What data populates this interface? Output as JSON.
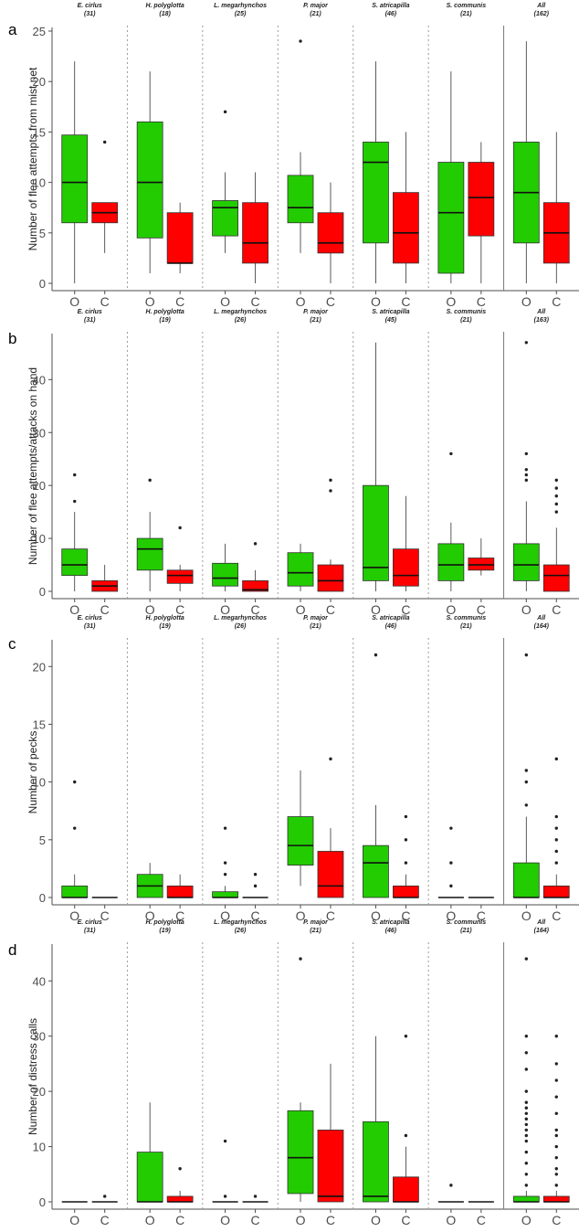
{
  "colors": {
    "O": "#22cc00",
    "C": "#ff0000",
    "axis": "#4d4d4d",
    "separator": "#9a9a9a"
  },
  "group_labels": [
    "O",
    "C"
  ],
  "chart_data": [
    {
      "type": "box",
      "panel": "a",
      "ylabel": "Number of flee attempts from mist net",
      "ylim": [
        0,
        25
      ],
      "yticks": [
        0,
        5,
        10,
        15,
        20,
        25
      ],
      "species": [
        {
          "name": "E. cirlus",
          "n": "(31)",
          "O": {
            "min": 0,
            "q1": 6,
            "median": 10,
            "q3": 14.7,
            "max": 22,
            "outliers": []
          },
          "C": {
            "min": 3,
            "q1": 6,
            "median": 7,
            "q3": 8,
            "max": 8,
            "outliers": [
              14
            ]
          }
        },
        {
          "name": "H. polyglotta",
          "n": "(18)",
          "O": {
            "min": 1,
            "q1": 4.5,
            "median": 10,
            "q3": 16,
            "max": 21,
            "outliers": []
          },
          "C": {
            "min": 1,
            "q1": 2,
            "median": 2,
            "q3": 7,
            "max": 8,
            "outliers": []
          }
        },
        {
          "name": "L. megarhynchos",
          "n": "(25)",
          "O": {
            "min": 3,
            "q1": 4.7,
            "median": 7.5,
            "q3": 8.2,
            "max": 11,
            "outliers": [
              17
            ]
          },
          "C": {
            "min": 0,
            "q1": 2,
            "median": 4,
            "q3": 8,
            "max": 11,
            "outliers": []
          }
        },
        {
          "name": "P. major",
          "n": "(21)",
          "O": {
            "min": 3,
            "q1": 6,
            "median": 7.5,
            "q3": 10.7,
            "max": 13,
            "outliers": [
              24
            ]
          },
          "C": {
            "min": 0,
            "q1": 3,
            "median": 4,
            "q3": 7,
            "max": 10,
            "outliers": []
          }
        },
        {
          "name": "S. atricapilla",
          "n": "(46)",
          "O": {
            "min": 0,
            "q1": 4,
            "median": 12,
            "q3": 14,
            "max": 22,
            "outliers": []
          },
          "C": {
            "min": 0,
            "q1": 2,
            "median": 5,
            "q3": 9,
            "max": 15,
            "outliers": []
          }
        },
        {
          "name": "S. communis",
          "n": "(21)",
          "O": {
            "min": 0,
            "q1": 1,
            "median": 7,
            "q3": 12,
            "max": 21,
            "outliers": []
          },
          "C": {
            "min": 0,
            "q1": 4.7,
            "median": 8.5,
            "q3": 12,
            "max": 14,
            "outliers": []
          }
        },
        {
          "name": "All",
          "n": "(162)",
          "O": {
            "min": 0,
            "q1": 4,
            "median": 9,
            "q3": 14,
            "max": 24,
            "outliers": []
          },
          "C": {
            "min": 0,
            "q1": 2,
            "median": 5,
            "q3": 8,
            "max": 15,
            "outliers": []
          }
        }
      ]
    },
    {
      "type": "box",
      "panel": "b",
      "ylabel": "Number of flee attempts/attacks on hand",
      "ylim": [
        0,
        48
      ],
      "yticks": [
        0,
        10,
        20,
        30,
        40
      ],
      "species": [
        {
          "name": "E. cirlus",
          "n": "(31)",
          "O": {
            "min": 0,
            "q1": 3,
            "median": 5,
            "q3": 8,
            "max": 15,
            "outliers": [
              17,
              22
            ]
          },
          "C": {
            "min": 0,
            "q1": 0,
            "median": 1,
            "q3": 2,
            "max": 5,
            "outliers": []
          }
        },
        {
          "name": "H. polyglotta",
          "n": "(19)",
          "O": {
            "min": 0,
            "q1": 4,
            "median": 8,
            "q3": 10,
            "max": 15,
            "outliers": [
              21
            ]
          },
          "C": {
            "min": 0,
            "q1": 1.5,
            "median": 3,
            "q3": 4,
            "max": 5,
            "outliers": [
              12
            ]
          }
        },
        {
          "name": "L. megarhynchos",
          "n": "(26)",
          "O": {
            "min": 0,
            "q1": 1,
            "median": 2.5,
            "q3": 5.3,
            "max": 9,
            "outliers": []
          },
          "C": {
            "min": 0,
            "q1": 0,
            "median": 0.3,
            "q3": 2,
            "max": 4,
            "outliers": [
              9
            ]
          }
        },
        {
          "name": "P. major",
          "n": "(21)",
          "O": {
            "min": 0,
            "q1": 1,
            "median": 3.5,
            "q3": 7.3,
            "max": 9,
            "outliers": []
          },
          "C": {
            "min": 0,
            "q1": 0,
            "median": 2,
            "q3": 5,
            "max": 6,
            "outliers": [
              19,
              21
            ]
          }
        },
        {
          "name": "S. atricapilla",
          "n": "(45)",
          "O": {
            "min": 0,
            "q1": 2,
            "median": 4.5,
            "q3": 20,
            "max": 47,
            "outliers": []
          },
          "C": {
            "min": 0,
            "q1": 1,
            "median": 3,
            "q3": 8,
            "max": 18,
            "outliers": []
          }
        },
        {
          "name": "S. communis",
          "n": "(21)",
          "O": {
            "min": 0,
            "q1": 2,
            "median": 5,
            "q3": 9,
            "max": 13,
            "outliers": [
              26
            ]
          },
          "C": {
            "min": 3,
            "q1": 4,
            "median": 5,
            "q3": 6.3,
            "max": 10,
            "outliers": []
          }
        },
        {
          "name": "All",
          "n": "(163)",
          "O": {
            "min": 0,
            "q1": 2,
            "median": 5,
            "q3": 9,
            "max": 17,
            "outliers": [
              21,
              22,
              23,
              26,
              47
            ]
          },
          "C": {
            "min": 0,
            "q1": 0,
            "median": 3,
            "q3": 5,
            "max": 12,
            "outliers": [
              15,
              16.5,
              18,
              19.5,
              21
            ]
          }
        }
      ]
    },
    {
      "type": "box",
      "panel": "c",
      "ylabel": "Number of pecks",
      "ylim": [
        0,
        22
      ],
      "yticks": [
        0,
        5,
        10,
        15,
        20
      ],
      "species": [
        {
          "name": "E. cirlus",
          "n": "(31)",
          "O": {
            "min": 0,
            "q1": 0,
            "median": 0,
            "q3": 1,
            "max": 2,
            "outliers": [
              6,
              10
            ]
          },
          "C": {
            "min": 0,
            "q1": 0,
            "median": 0,
            "q3": 0,
            "max": 0,
            "outliers": []
          }
        },
        {
          "name": "H. polyglotta",
          "n": "(19)",
          "O": {
            "min": 0,
            "q1": 0,
            "median": 1,
            "q3": 2,
            "max": 3,
            "outliers": []
          },
          "C": {
            "min": 0,
            "q1": 0,
            "median": 0,
            "q3": 1,
            "max": 2,
            "outliers": []
          }
        },
        {
          "name": "L. megarhynchos",
          "n": "(26)",
          "O": {
            "min": 0,
            "q1": 0,
            "median": 0,
            "q3": 0.5,
            "max": 1,
            "outliers": [
              2,
              3,
              6
            ]
          },
          "C": {
            "min": 0,
            "q1": 0,
            "median": 0,
            "q3": 0,
            "max": 0,
            "outliers": [
              1,
              2
            ]
          }
        },
        {
          "name": "P. major",
          "n": "(21)",
          "O": {
            "min": 1,
            "q1": 2.8,
            "median": 4.5,
            "q3": 7,
            "max": 11,
            "outliers": []
          },
          "C": {
            "min": 0,
            "q1": 0,
            "median": 1,
            "q3": 4,
            "max": 6,
            "outliers": [
              12
            ]
          }
        },
        {
          "name": "S. atricapilla",
          "n": "(46)",
          "O": {
            "min": 0,
            "q1": 0,
            "median": 3,
            "q3": 4.5,
            "max": 8,
            "outliers": [
              21
            ]
          },
          "C": {
            "min": 0,
            "q1": 0,
            "median": 0,
            "q3": 1,
            "max": 2,
            "outliers": [
              3,
              5,
              7
            ]
          }
        },
        {
          "name": "S. communis",
          "n": "(21)",
          "O": {
            "min": 0,
            "q1": 0,
            "median": 0,
            "q3": 0,
            "max": 0,
            "outliers": [
              1,
              3,
              6
            ]
          },
          "C": {
            "min": 0,
            "q1": 0,
            "median": 0,
            "q3": 0,
            "max": 0,
            "outliers": []
          }
        },
        {
          "name": "All",
          "n": "(164)",
          "O": {
            "min": 0,
            "q1": 0,
            "median": 0,
            "q3": 3,
            "max": 7,
            "outliers": [
              8,
              10,
              11,
              21
            ]
          },
          "C": {
            "min": 0,
            "q1": 0,
            "median": 0,
            "q3": 1,
            "max": 2,
            "outliers": [
              3,
              4,
              5,
              6,
              7,
              12
            ]
          }
        }
      ]
    },
    {
      "type": "box",
      "panel": "d",
      "ylabel": "Number of distress calls",
      "ylim": [
        0,
        46
      ],
      "yticks": [
        0,
        10,
        20,
        30,
        40
      ],
      "species": [
        {
          "name": "E. cirlus",
          "n": "(31)",
          "O": {
            "min": 0,
            "q1": 0,
            "median": 0,
            "q3": 0,
            "max": 0,
            "outliers": []
          },
          "C": {
            "min": 0,
            "q1": 0,
            "median": 0,
            "q3": 0,
            "max": 0,
            "outliers": [
              1
            ]
          }
        },
        {
          "name": "H. polyglotta",
          "n": "(19)",
          "O": {
            "min": 0,
            "q1": 0,
            "median": 0,
            "q3": 9,
            "max": 18,
            "outliers": []
          },
          "C": {
            "min": 0,
            "q1": 0,
            "median": 0,
            "q3": 1,
            "max": 2,
            "outliers": [
              6
            ]
          }
        },
        {
          "name": "L. megarhynchos",
          "n": "(26)",
          "O": {
            "min": 0,
            "q1": 0,
            "median": 0,
            "q3": 0,
            "max": 0,
            "outliers": [
              1,
              11
            ]
          },
          "C": {
            "min": 0,
            "q1": 0,
            "median": 0,
            "q3": 0,
            "max": 0,
            "outliers": [
              1
            ]
          }
        },
        {
          "name": "P. major",
          "n": "(21)",
          "O": {
            "min": 0,
            "q1": 1.5,
            "median": 8,
            "q3": 16.5,
            "max": 18,
            "outliers": [
              44
            ]
          },
          "C": {
            "min": 0,
            "q1": 0,
            "median": 1,
            "q3": 13,
            "max": 25,
            "outliers": []
          }
        },
        {
          "name": "S. atricapilla",
          "n": "(46)",
          "O": {
            "min": 0,
            "q1": 0,
            "median": 1,
            "q3": 14.5,
            "max": 30,
            "outliers": []
          },
          "C": {
            "min": 0,
            "q1": 0,
            "median": 0,
            "q3": 4.5,
            "max": 10,
            "outliers": [
              12,
              30
            ]
          }
        },
        {
          "name": "S. communis",
          "n": "(21)",
          "O": {
            "min": 0,
            "q1": 0,
            "median": 0,
            "q3": 0,
            "max": 0,
            "outliers": [
              3
            ]
          },
          "C": {
            "min": 0,
            "q1": 0,
            "median": 0,
            "q3": 0,
            "max": 0,
            "outliers": []
          }
        },
        {
          "name": "All",
          "n": "(164)",
          "O": {
            "min": 0,
            "q1": 0,
            "median": 0,
            "q3": 1,
            "max": 2,
            "outliers": [
              3,
              5,
              7,
              9,
              11,
              12,
              13,
              14,
              15,
              16,
              17,
              18,
              20,
              24,
              27,
              30,
              44
            ]
          },
          "C": {
            "min": 0,
            "q1": 0,
            "median": 0,
            "q3": 1,
            "max": 2,
            "outliers": [
              3,
              5,
              6,
              8,
              10,
              12,
              13,
              16,
              19,
              22,
              25,
              30
            ]
          }
        }
      ]
    }
  ]
}
